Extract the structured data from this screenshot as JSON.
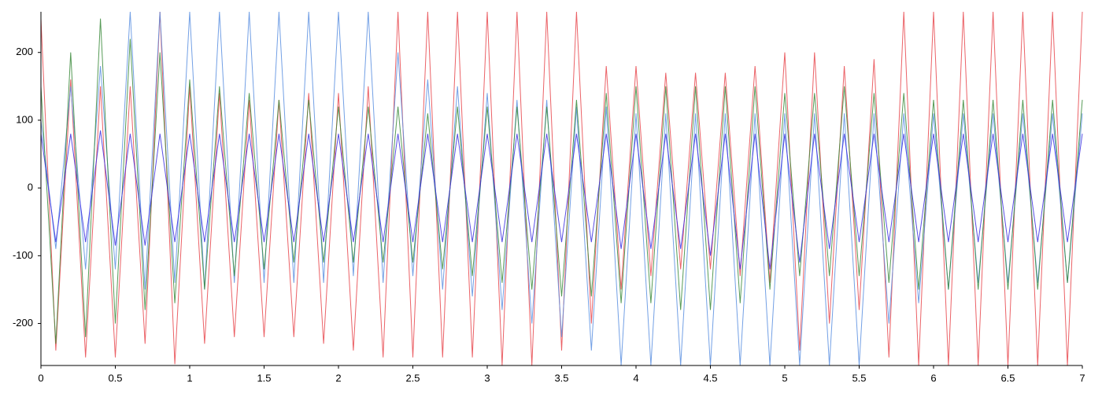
{
  "chart_data": {
    "type": "line",
    "x": [
      0,
      0.1,
      0.2,
      0.3,
      0.4,
      0.5,
      0.6,
      0.7,
      0.8,
      0.9,
      1,
      1.1,
      1.2,
      1.3,
      1.4,
      1.5,
      1.6,
      1.7,
      1.8,
      1.9,
      2,
      2.1,
      2.2,
      2.3,
      2.4,
      2.5,
      2.6,
      2.7,
      2.8,
      2.9,
      3,
      3.1,
      3.2,
      3.3,
      3.4,
      3.5,
      3.6,
      3.7,
      3.8,
      3.9,
      4,
      4.1,
      4.2,
      4.3,
      4.4,
      4.5,
      4.6,
      4.7,
      4.8,
      4.9,
      5,
      5.1,
      5.2,
      5.3,
      5.4,
      5.5,
      5.6,
      5.7,
      5.8,
      5.9,
      6,
      6.1,
      6.2,
      6.3,
      6.4,
      6.5,
      6.6,
      6.7,
      6.8,
      6.9,
      7
    ],
    "series": [
      {
        "color": "#e8474c",
        "values": [
          250,
          -240,
          160,
          -250,
          150,
          -250,
          150,
          -230,
          260,
          -260,
          150,
          -230,
          140,
          -220,
          130,
          -220,
          130,
          -220,
          140,
          -230,
          140,
          -240,
          150,
          -250,
          260,
          -250,
          260,
          -250,
          260,
          -250,
          260,
          -262,
          260,
          -262,
          260,
          -240,
          260,
          -200,
          180,
          -150,
          180,
          -130,
          170,
          -120,
          170,
          -120,
          170,
          -130,
          180,
          -140,
          200,
          -240,
          200,
          -200,
          180,
          -180,
          190,
          -250,
          260,
          -262,
          260,
          -262,
          260,
          -262,
          260,
          -262,
          260,
          -262,
          260,
          -262,
          260
        ]
      },
      {
        "color": "#5b8fe0",
        "values": [
          100,
          -90,
          150,
          -120,
          180,
          -120,
          260,
          -150,
          260,
          -140,
          260,
          -150,
          260,
          -140,
          260,
          -140,
          260,
          -140,
          260,
          -140,
          260,
          -130,
          260,
          -140,
          200,
          -130,
          160,
          -150,
          150,
          -160,
          140,
          -180,
          130,
          -200,
          130,
          -220,
          120,
          -240,
          120,
          -262,
          110,
          -262,
          110,
          -262,
          110,
          -262,
          110,
          -262,
          110,
          -262,
          110,
          -262,
          110,
          -262,
          110,
          -262,
          110,
          -200,
          110,
          -170,
          110,
          -150,
          110,
          -140,
          110,
          -140,
          110,
          -140,
          110,
          -140,
          110
        ]
      },
      {
        "color": "#3a8a3a",
        "values": [
          150,
          -230,
          200,
          -220,
          250,
          -200,
          220,
          -180,
          200,
          -170,
          160,
          -150,
          150,
          -130,
          140,
          -120,
          130,
          -110,
          130,
          -110,
          120,
          -110,
          120,
          -110,
          120,
          -110,
          110,
          -120,
          120,
          -130,
          120,
          -140,
          120,
          -150,
          120,
          -160,
          130,
          -160,
          140,
          -170,
          150,
          -170,
          150,
          -180,
          150,
          -180,
          150,
          -170,
          150,
          -150,
          140,
          -130,
          140,
          -130,
          150,
          -130,
          140,
          -140,
          140,
          -150,
          130,
          -150,
          130,
          -150,
          130,
          -150,
          130,
          -150,
          130,
          -140,
          130
        ]
      },
      {
        "color": "#3b2fe0",
        "values": [
          80,
          -80,
          80,
          -80,
          85,
          -85,
          80,
          -85,
          80,
          -80,
          80,
          -80,
          80,
          -80,
          80,
          -80,
          80,
          -80,
          80,
          -80,
          80,
          -80,
          80,
          -80,
          80,
          -80,
          80,
          -80,
          80,
          -80,
          80,
          -80,
          80,
          -80,
          80,
          -80,
          80,
          -80,
          80,
          -90,
          80,
          -90,
          80,
          -90,
          80,
          -100,
          80,
          -120,
          80,
          -120,
          80,
          -110,
          80,
          -90,
          80,
          -80,
          80,
          -80,
          80,
          -80,
          80,
          -80,
          80,
          -80,
          80,
          -80,
          80,
          -80,
          80,
          -80,
          80
        ]
      }
    ],
    "xlim": [
      0,
      7
    ],
    "xticks": [
      0,
      0.5,
      1,
      1.5,
      2,
      2.5,
      3,
      3.5,
      4,
      4.5,
      5,
      5.5,
      6,
      6.5,
      7
    ],
    "ylim": [
      -262,
      260
    ],
    "yticks": [
      -200,
      -100,
      0,
      100,
      200
    ]
  }
}
